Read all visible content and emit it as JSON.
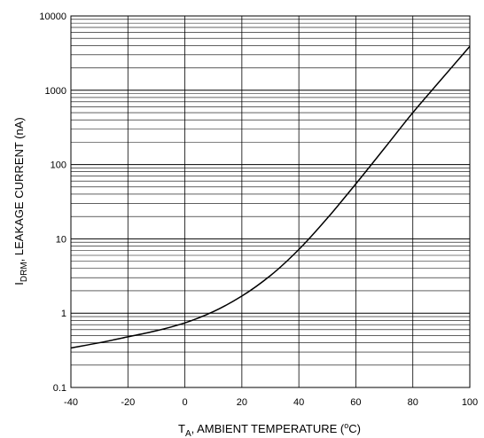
{
  "chart_data": {
    "type": "line",
    "xlabel": {
      "main": "T",
      "sub": "A",
      "rest": ", AMBIENT TEMPERATURE (",
      "sup": "o",
      "end": "C)"
    },
    "ylabel": {
      "main": "I",
      "sub": "DRM",
      "rest": ", LEAKAGE CURRENT (nA)"
    },
    "xlim": [
      -40,
      100
    ],
    "ylim": [
      0.1,
      10000
    ],
    "yscale": "log",
    "grid": true,
    "x_ticks": [
      -40,
      -20,
      0,
      20,
      40,
      60,
      80,
      100
    ],
    "y_ticks": [
      0.1,
      1,
      10,
      100,
      1000,
      10000
    ],
    "x_tick_labels": [
      "-40",
      "-20",
      "0",
      "20",
      "40",
      "60",
      "80",
      "100"
    ],
    "y_tick_labels": [
      "0.1",
      "1",
      "10",
      "100",
      "1000",
      "10000"
    ],
    "series": [
      {
        "x": [
          -40,
          -30,
          -20,
          -10,
          0,
          10,
          20,
          30,
          40,
          50,
          60,
          70,
          80,
          90,
          100
        ],
        "y": [
          0.34,
          0.4,
          0.48,
          0.58,
          0.74,
          1.05,
          1.7,
          3.2,
          7.2,
          19,
          55,
          165,
          500,
          1400,
          3900
        ]
      }
    ]
  }
}
